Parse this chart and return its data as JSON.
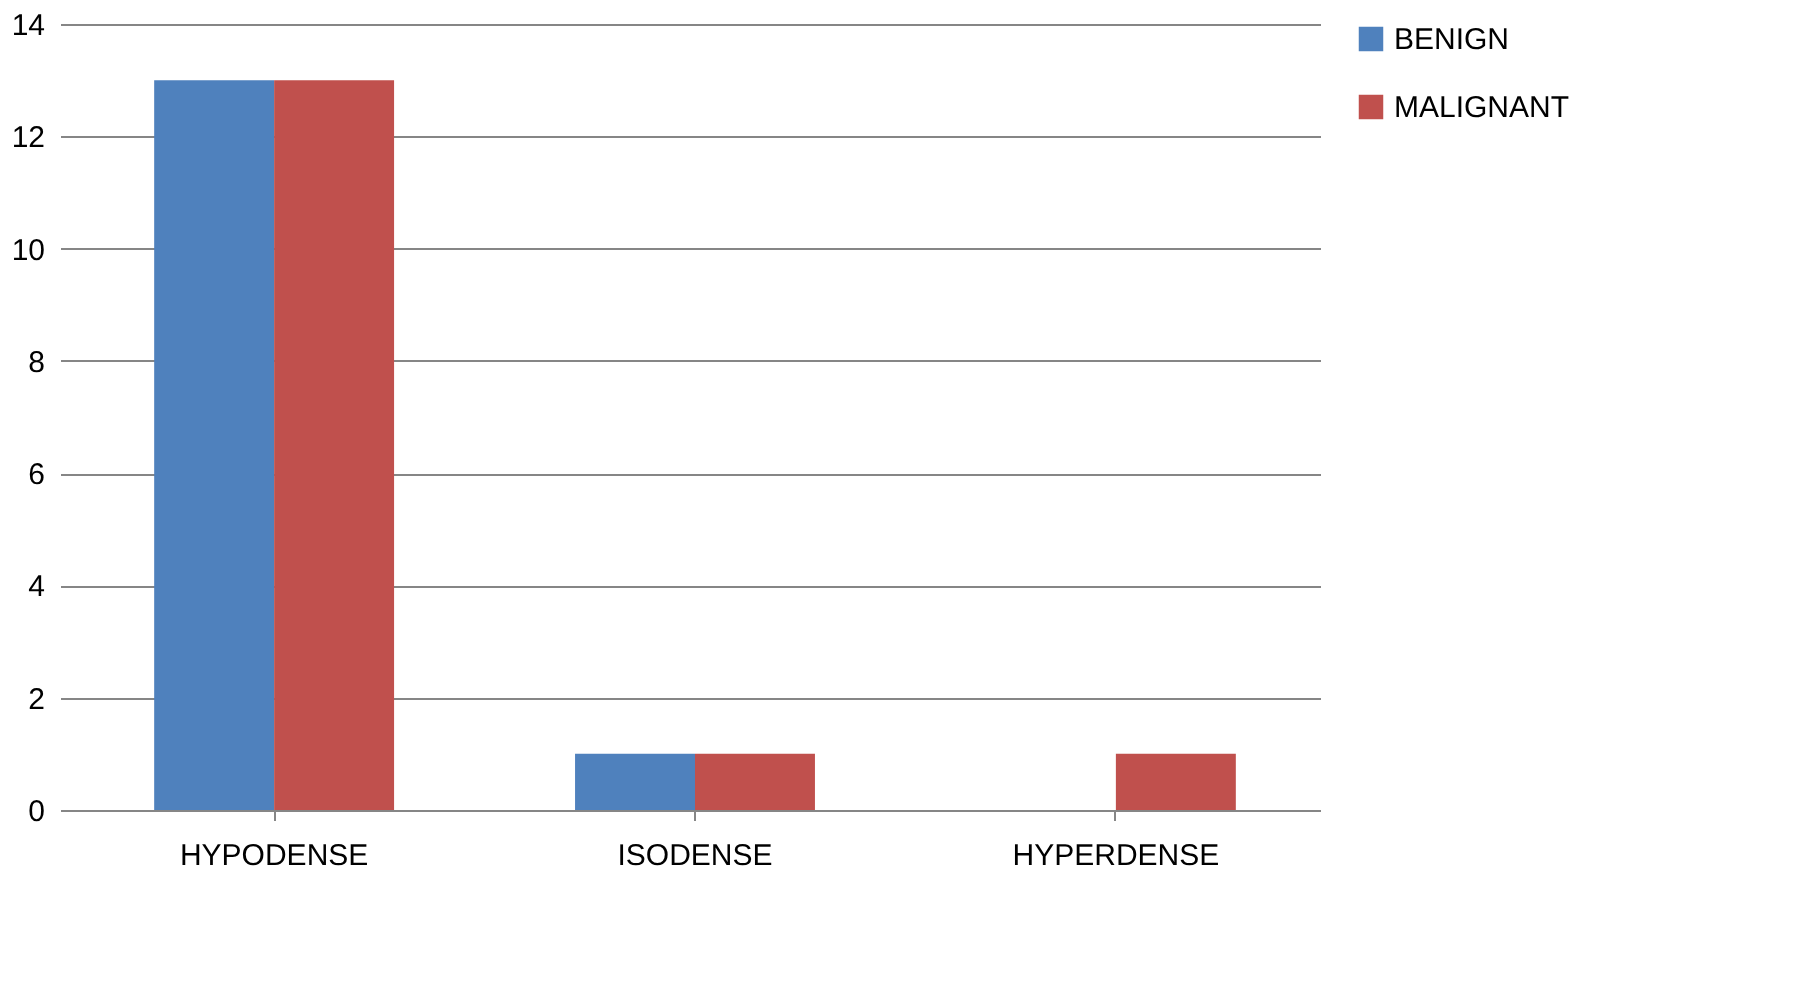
{
  "chart_data": {
    "type": "bar",
    "categories": [
      "HYPODENSE",
      "ISODENSE",
      "HYPERDENSE"
    ],
    "series": [
      {
        "name": "BENIGN",
        "color": "#4f81bd",
        "values": [
          13,
          1,
          0
        ]
      },
      {
        "name": "MALIGNANT",
        "color": "#c0504d",
        "values": [
          13,
          1,
          1
        ]
      }
    ],
    "ylim": [
      0,
      14
    ],
    "yticks": [
      0,
      2,
      4,
      6,
      8,
      10,
      12,
      14
    ],
    "grid": "y",
    "legend": "right"
  }
}
